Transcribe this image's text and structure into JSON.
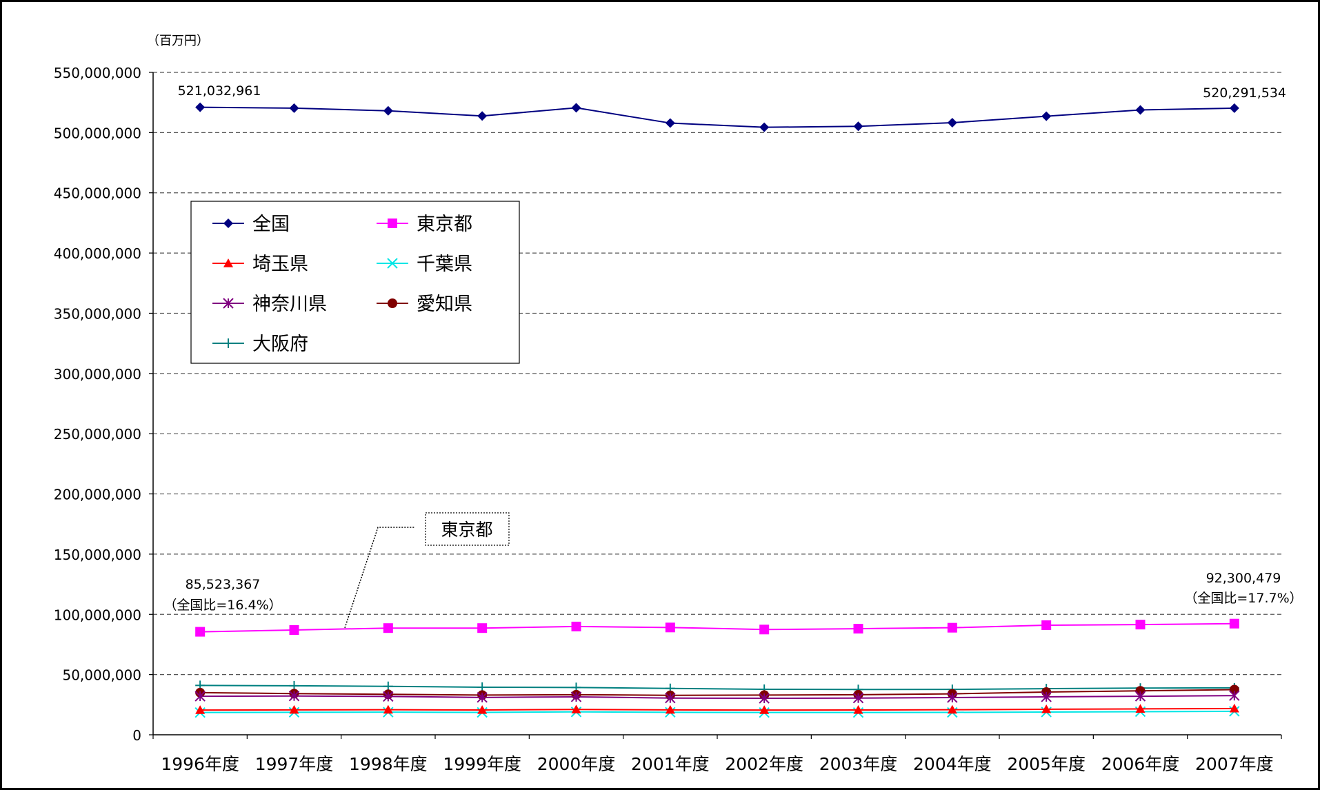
{
  "chart_data": {
    "type": "line",
    "unit_label": "（百万円）",
    "categories": [
      "1996年度",
      "1997年度",
      "1998年度",
      "1999年度",
      "2000年度",
      "2001年度",
      "2002年度",
      "2003年度",
      "2004年度",
      "2005年度",
      "2006年度",
      "2007年度"
    ],
    "ylim": [
      0,
      550000000
    ],
    "yticks": [
      0,
      50000000,
      100000000,
      150000000,
      200000000,
      250000000,
      300000000,
      350000000,
      400000000,
      450000000,
      500000000,
      550000000
    ],
    "ytick_labels": [
      "0",
      "50,000,000",
      "100,000,000",
      "150,000,000",
      "200,000,000",
      "250,000,000",
      "300,000,000",
      "350,000,000",
      "400,000,000",
      "450,000,000",
      "500,000,000",
      "550,000,000"
    ],
    "grid": "horizontal dashed",
    "legend_placement": "upper-left",
    "series": [
      {
        "name": "全国",
        "color": "#000080",
        "marker": "diamond",
        "values": [
          521032961,
          520300000,
          518100000,
          513800000,
          520600000,
          507900000,
          504400000,
          505200000,
          508200000,
          513600000,
          518800000,
          520291534
        ]
      },
      {
        "name": "東京都",
        "color": "#ff00ff",
        "marker": "square",
        "values": [
          85523367,
          87000000,
          88600000,
          88600000,
          89900000,
          89100000,
          87400000,
          88100000,
          88900000,
          91000000,
          91500000,
          92300479
        ]
      },
      {
        "name": "埼玉県",
        "color": "#ff0000",
        "marker": "triangle",
        "values": [
          20500000,
          20700000,
          20800000,
          20600000,
          21000000,
          20700000,
          20500000,
          20600000,
          20800000,
          21200000,
          21500000,
          21800000
        ]
      },
      {
        "name": "千葉県",
        "color": "#00e5e5",
        "marker": "x",
        "values": [
          18500000,
          18700000,
          18800000,
          18600000,
          19000000,
          18700000,
          18500000,
          18500000,
          18600000,
          18900000,
          19200000,
          19500000
        ]
      },
      {
        "name": "神奈川県",
        "color": "#800080",
        "marker": "asterisk",
        "values": [
          32000000,
          32200000,
          31800000,
          31000000,
          31500000,
          30500000,
          30300000,
          30500000,
          30900000,
          31500000,
          32000000,
          32500000
        ]
      },
      {
        "name": "愛知県",
        "color": "#800000",
        "marker": "circle",
        "values": [
          35000000,
          34200000,
          33600000,
          33000000,
          33300000,
          32800000,
          33000000,
          33300000,
          34000000,
          35500000,
          36500000,
          37500000
        ]
      },
      {
        "name": "大阪府",
        "color": "#008080",
        "marker": "plus",
        "values": [
          41000000,
          40700000,
          40200000,
          39500000,
          39300000,
          38500000,
          37800000,
          37600000,
          37700000,
          38300000,
          38800000,
          39000000
        ]
      }
    ],
    "annotations": {
      "national_first": "521,032,961",
      "national_last": "520,291,534",
      "tokyo_first_value": "85,523,367",
      "tokyo_first_ratio": "（全国比=16.4%）",
      "tokyo_last_value": "92,300,479",
      "tokyo_last_ratio": "（全国比=17.7%）",
      "tokyo_callout": "東京都"
    }
  }
}
